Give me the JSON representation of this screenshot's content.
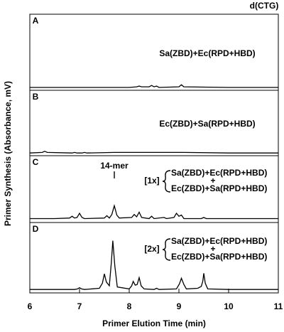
{
  "figure": {
    "title": "d(CTG)",
    "ylabel": "Primer Synthesis (Absorbance, mV)"
  },
  "chart_data": [
    {
      "type": "line",
      "panel": "A",
      "labels": [
        "Sa(ZBD)+Ec(RPD+HBD)"
      ],
      "color": "#000000",
      "ylim": [
        0,
        100
      ],
      "x": [
        6,
        7,
        8,
        8.15,
        8.2,
        8.25,
        8.4,
        8.45,
        8.5,
        8.55,
        8.6,
        9.0,
        9.05,
        9.1,
        10,
        11
      ],
      "values": [
        1,
        1,
        1,
        2,
        3,
        2,
        2,
        4,
        2,
        3,
        1,
        2,
        5,
        2,
        1,
        1
      ]
    },
    {
      "type": "line",
      "panel": "B",
      "labels": [
        "Ec(ZBD)+Sa(RPD+HBD)"
      ],
      "color": "#000000",
      "ylim": [
        0,
        100
      ],
      "x": [
        6,
        6.25,
        6.3,
        6.35,
        6.85,
        6.9,
        6.95,
        7.05,
        7.1,
        7.15,
        7.7,
        8.6,
        9.1,
        10,
        11
      ],
      "values": [
        1,
        2,
        4,
        2,
        1,
        2,
        1,
        1,
        2,
        1,
        2,
        2,
        2,
        1,
        1
      ]
    },
    {
      "type": "line",
      "panel": "C",
      "multiplier": "[1x]",
      "labels": [
        "Sa(ZBD)+Ec(RPD+HBD)",
        "Ec(ZBD)+Sa(RPD+HBD)"
      ],
      "join": "+",
      "annotation": {
        "text": "14-mer",
        "x": 7.7
      },
      "color": "#000000",
      "ylim": [
        0,
        100
      ],
      "x": [
        6,
        6.5,
        6.8,
        6.85,
        6.9,
        6.95,
        7.0,
        7.05,
        7.1,
        7.5,
        7.55,
        7.6,
        7.65,
        7.7,
        7.75,
        7.8,
        8.05,
        8.1,
        8.15,
        8.2,
        8.25,
        8.4,
        8.45,
        8.5,
        8.7,
        8.75,
        8.9,
        8.95,
        9.0,
        9.05,
        9.1,
        9.45,
        9.5,
        9.55,
        10,
        10.5,
        11
      ],
      "values": [
        3,
        3,
        4,
        7,
        4,
        5,
        12,
        5,
        3,
        4,
        8,
        4,
        10,
        25,
        9,
        4,
        5,
        10,
        6,
        14,
        5,
        3,
        7,
        3,
        5,
        3,
        5,
        12,
        7,
        9,
        3,
        3,
        5,
        3,
        3,
        3,
        3
      ]
    },
    {
      "type": "line",
      "panel": "D",
      "multiplier": "[2x]",
      "labels": [
        "Sa(ZBD)+Ec(RPD+HBD)",
        "Ec(ZBD)+Sa(RPD+HBD)"
      ],
      "join": "+",
      "color": "#000000",
      "ylim": [
        0,
        100
      ],
      "xlabel": "Primer Elution Time (min)",
      "xlim": [
        6,
        11
      ],
      "xticks": [
        6,
        7,
        8,
        9,
        10,
        11
      ],
      "x": [
        6,
        6.5,
        6.9,
        6.96,
        7.0,
        7.04,
        7.1,
        7.4,
        7.46,
        7.5,
        7.54,
        7.6,
        7.64,
        7.67,
        7.71,
        7.76,
        8.0,
        8.05,
        8.08,
        8.12,
        8.16,
        8.2,
        8.24,
        8.3,
        8.5,
        8.55,
        8.6,
        8.95,
        9.01,
        9.05,
        9.1,
        9.15,
        9.38,
        9.45,
        9.48,
        9.5,
        9.53,
        9.58,
        10,
        10.5,
        11
      ],
      "values": [
        2,
        2,
        2,
        3,
        5,
        3,
        2,
        4,
        12,
        27,
        14,
        8,
        45,
        80,
        40,
        6,
        3,
        8,
        15,
        9,
        10,
        21,
        8,
        3,
        2,
        4,
        2,
        3,
        11,
        20,
        10,
        3,
        4,
        7,
        15,
        28,
        12,
        3,
        2,
        2,
        2
      ]
    }
  ]
}
